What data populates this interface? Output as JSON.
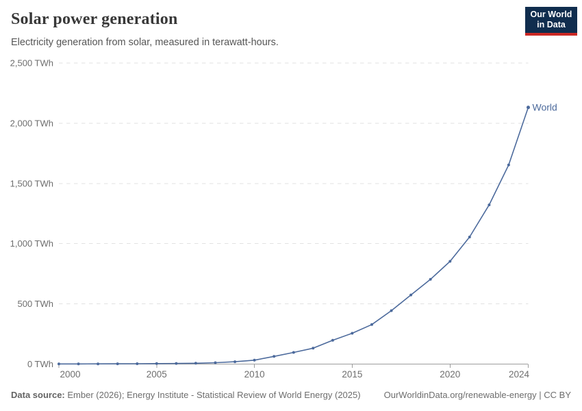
{
  "header": {
    "title": "Solar power generation",
    "subtitle": "Electricity generation from solar, measured in terawatt-hours.",
    "logo": {
      "line1": "Our World",
      "line2": "in Data",
      "bg_color": "#102d4e",
      "bar_color": "#cb2824"
    }
  },
  "chart_data": {
    "type": "line",
    "title": "Solar power generation",
    "subtitle": "Electricity generation from solar, measured in terawatt-hours.",
    "unit": "TWh",
    "x": [
      2000,
      2001,
      2002,
      2003,
      2004,
      2005,
      2006,
      2007,
      2008,
      2009,
      2010,
      2011,
      2012,
      2013,
      2014,
      2015,
      2016,
      2017,
      2018,
      2019,
      2020,
      2021,
      2022,
      2023,
      2024
    ],
    "series": [
      {
        "name": "World",
        "color": "#4c6a9c",
        "values": [
          1.1,
          1.3,
          1.6,
          2.0,
          2.6,
          3.8,
          5.0,
          6.8,
          11.4,
          19.3,
          32.2,
          63.6,
          96.7,
          131.9,
          197.4,
          255.9,
          328.2,
          443.6,
          574.2,
          703.4,
          853.1,
          1055.2,
          1321.9,
          1653.3,
          2131.6
        ]
      }
    ],
    "xlim": [
      2000,
      2024
    ],
    "ylim": [
      0,
      2500
    ],
    "x_ticks": [
      2000,
      2005,
      2010,
      2015,
      2020,
      2024
    ],
    "x_tick_labels": [
      "2000",
      "2005",
      "2010",
      "2015",
      "2020",
      "2024"
    ],
    "y_ticks": [
      0,
      500,
      1000,
      1500,
      2000,
      2500
    ],
    "y_tick_labels": [
      "0 TWh",
      "500 TWh",
      "1,000 TWh",
      "1,500 TWh",
      "2,000 TWh",
      "2,500 TWh"
    ],
    "grid": "horizontal-dashed",
    "legend_position": "end-of-line",
    "colors": {
      "gridline": "#e2e2e2",
      "axis": "#9c9c9c",
      "tick_label": "#6e6e6e"
    }
  },
  "footer": {
    "datasource_label": "Data source:",
    "datasource_text": " Ember (2026); Energy Institute - Statistical Review of World Energy (2025)",
    "attribution": "OurWorldinData.org/renewable-energy | CC BY"
  }
}
